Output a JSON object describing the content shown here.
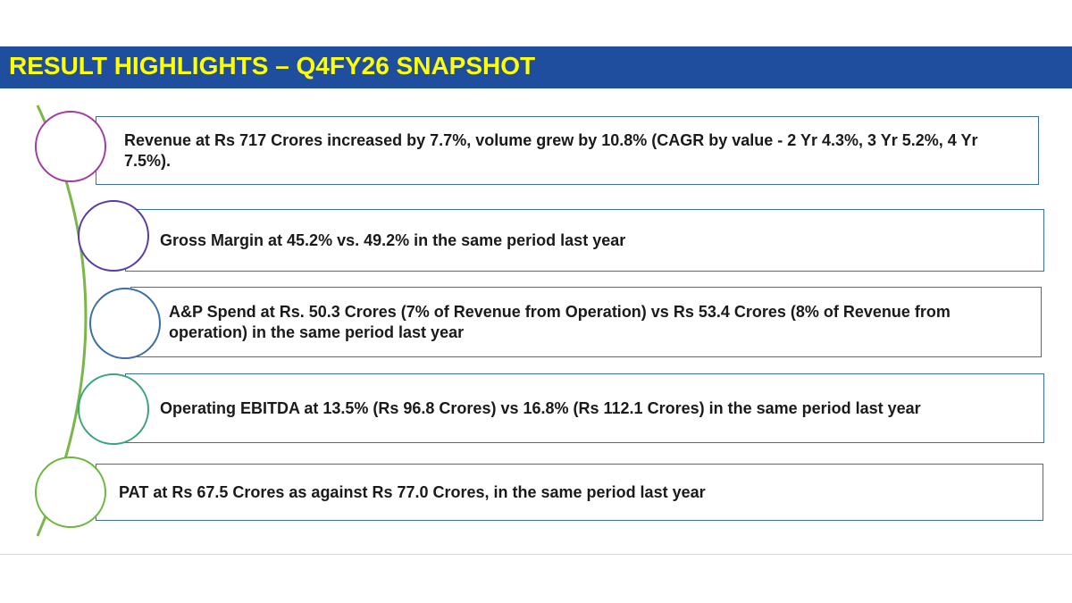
{
  "title": "RESULT HIGHLIGHTS – Q4FY26 SNAPSHOT",
  "highlights": [
    {
      "text": "Revenue at Rs 717 Crores increased by 7.7%, volume grew by 10.8% (CAGR by value - 2 Yr 4.3%, 3 Yr 5.2%, 4 Yr 7.5%)."
    },
    {
      "text": "Gross Margin at 45.2% vs. 49.2% in the same period last year"
    },
    {
      "text": "A&P Spend at Rs. 50.3 Crores (7% of Revenue from Operation) vs Rs 53.4 Crores (8% of Revenue from operation) in the same period last year"
    },
    {
      "text": "Operating EBITDA at 13.5% (Rs 96.8 Crores) vs 16.8% (Rs 112.1 Crores) in the same period last year"
    },
    {
      "text": "PAT at Rs 67.5 Crores as against Rs 77.0 Crores, in the same period last year"
    }
  ],
  "colors": {
    "title_bar": "#1f4e9e",
    "title_text": "#ffff00",
    "box_border": "#3a6ea5",
    "circle_borders": [
      "#a23aa5",
      "#5a3aa8",
      "#3a6ea5",
      "#3aa57a",
      "#6ab83a"
    ],
    "connector": "#7ab648"
  }
}
